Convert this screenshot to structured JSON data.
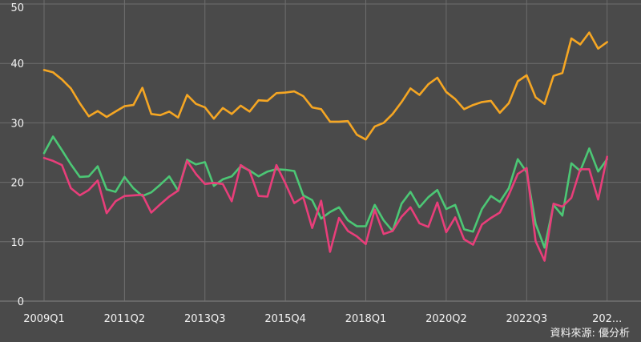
{
  "chart_data": {
    "type": "line",
    "title": "",
    "xlabel": "",
    "ylabel": "",
    "ylim": [
      0,
      50
    ],
    "yticks": [
      0,
      10,
      20,
      30,
      40,
      50
    ],
    "grid": true,
    "legend": "none",
    "source": "資料來源: 優分析",
    "x_tick_labels": [
      "2009Q1",
      "2011Q2",
      "2013Q3",
      "2015Q4",
      "2018Q1",
      "2020Q2",
      "2022Q3",
      "202..."
    ],
    "x_tick_positions": [
      "2009Q1",
      "2011Q2",
      "2013Q3",
      "2015Q4",
      "2018Q1",
      "2020Q2",
      "2022Q3",
      "2024Q4"
    ],
    "x_start": "2009Q1",
    "x_end": "2025Q2",
    "series": [
      {
        "color": "#f5a623",
        "values": [
          38.9,
          38.5,
          37.3,
          35.8,
          33.3,
          31.1,
          32.0,
          31.0,
          31.9,
          32.8,
          33.0,
          35.9,
          31.5,
          31.3,
          31.9,
          30.9,
          34.7,
          33.2,
          32.6,
          30.7,
          32.5,
          31.5,
          32.9,
          31.9,
          33.8,
          33.7,
          35.0,
          35.1,
          35.3,
          34.5,
          32.6,
          32.3,
          30.2,
          30.2,
          30.3,
          28.0,
          27.2,
          29.4,
          30.0,
          31.5,
          33.5,
          35.8,
          34.7,
          36.5,
          37.6,
          35.2,
          34.0,
          32.3,
          33.0,
          33.5,
          33.7,
          31.7,
          33.3,
          37.0,
          38.0,
          34.3,
          33.2,
          37.9,
          38.4,
          44.2,
          43.2,
          45.2,
          42.5,
          43.6
        ]
      },
      {
        "color": "#4cc775",
        "values": [
          24.9,
          27.7,
          25.4,
          23.0,
          20.9,
          21.0,
          22.7,
          18.8,
          18.4,
          20.9,
          19.0,
          17.7,
          18.3,
          19.6,
          21.0,
          18.6,
          23.8,
          23.0,
          23.4,
          19.4,
          20.5,
          21.0,
          22.7,
          22.0,
          21.0,
          21.8,
          22.2,
          22.1,
          21.9,
          17.8,
          17.0,
          13.9,
          15.0,
          15.8,
          13.6,
          12.6,
          12.6,
          16.2,
          13.6,
          11.8,
          16.4,
          18.4,
          15.8,
          17.5,
          18.7,
          15.5,
          16.2,
          12.1,
          11.7,
          15.5,
          17.7,
          16.7,
          19.0,
          23.9,
          21.7,
          13.0,
          9.0,
          16.2,
          14.4,
          23.2,
          21.9,
          25.7,
          21.8,
          23.9
        ]
      },
      {
        "color": "#e83e7a",
        "values": [
          24.1,
          23.6,
          22.9,
          19.0,
          17.8,
          18.7,
          20.3,
          14.8,
          16.8,
          17.7,
          17.8,
          17.9,
          14.9,
          16.3,
          17.6,
          18.6,
          23.6,
          21.4,
          19.7,
          19.9,
          19.7,
          16.8,
          22.9,
          21.9,
          17.7,
          17.6,
          22.9,
          19.8,
          16.5,
          17.5,
          12.3,
          16.9,
          8.3,
          14.0,
          11.8,
          10.9,
          9.6,
          15.4,
          11.3,
          11.8,
          14.2,
          15.8,
          13.1,
          12.5,
          16.6,
          11.6,
          14.1,
          10.4,
          9.5,
          12.9,
          14.0,
          14.9,
          17.9,
          21.4,
          22.4,
          10.1,
          6.8,
          16.4,
          15.9,
          17.4,
          22.2,
          22.2,
          17.1,
          24.3
        ]
      }
    ]
  }
}
